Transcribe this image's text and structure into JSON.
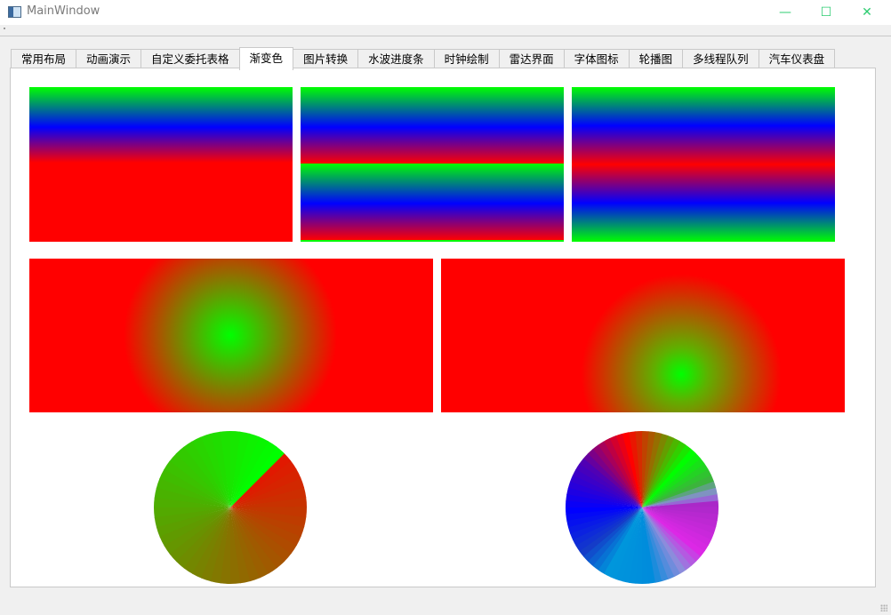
{
  "window": {
    "title": "MainWindow",
    "controls": {
      "minimize": "—",
      "maximize": "☐",
      "close": "✕"
    },
    "accent_color": "#2ecc71"
  },
  "tabs": [
    {
      "label": "常用布局",
      "active": false
    },
    {
      "label": "动画演示",
      "active": false
    },
    {
      "label": "自定义委托表格",
      "active": false
    },
    {
      "label": "渐变色",
      "active": true
    },
    {
      "label": "图片转换",
      "active": false
    },
    {
      "label": "水波进度条",
      "active": false
    },
    {
      "label": "时钟绘制",
      "active": false
    },
    {
      "label": "雷达界面",
      "active": false
    },
    {
      "label": "字体图标",
      "active": false
    },
    {
      "label": "轮播图",
      "active": false
    },
    {
      "label": "多线程队列",
      "active": false
    },
    {
      "label": "汽车仪表盘",
      "active": false
    }
  ],
  "gradients": {
    "linear_pad": {
      "colors": [
        "#00ff00",
        "#0000ff",
        "#ff0000"
      ],
      "spread": "pad"
    },
    "linear_repeat": {
      "colors": [
        "#00ff00",
        "#0000ff",
        "#ff0000"
      ],
      "spread": "repeat"
    },
    "linear_reflect": {
      "colors": [
        "#00ff00",
        "#0000ff",
        "#ff0000"
      ],
      "spread": "reflect"
    },
    "radial_centered": {
      "inner": "#00ff00",
      "outer": "#ff0000",
      "focal": "center"
    },
    "radial_focal": {
      "inner": "#00ff00",
      "outer": "#ff0000",
      "focal": "lower-right"
    },
    "conical_green_red": {
      "colors": [
        "#00ff00",
        "#ff0000",
        "#808000",
        "#00ff00"
      ]
    },
    "conical_multicolor": {
      "colors": [
        "#00ff00",
        "#ff0000",
        "#0000ff",
        "#0090d8",
        "#d020e0"
      ]
    }
  }
}
